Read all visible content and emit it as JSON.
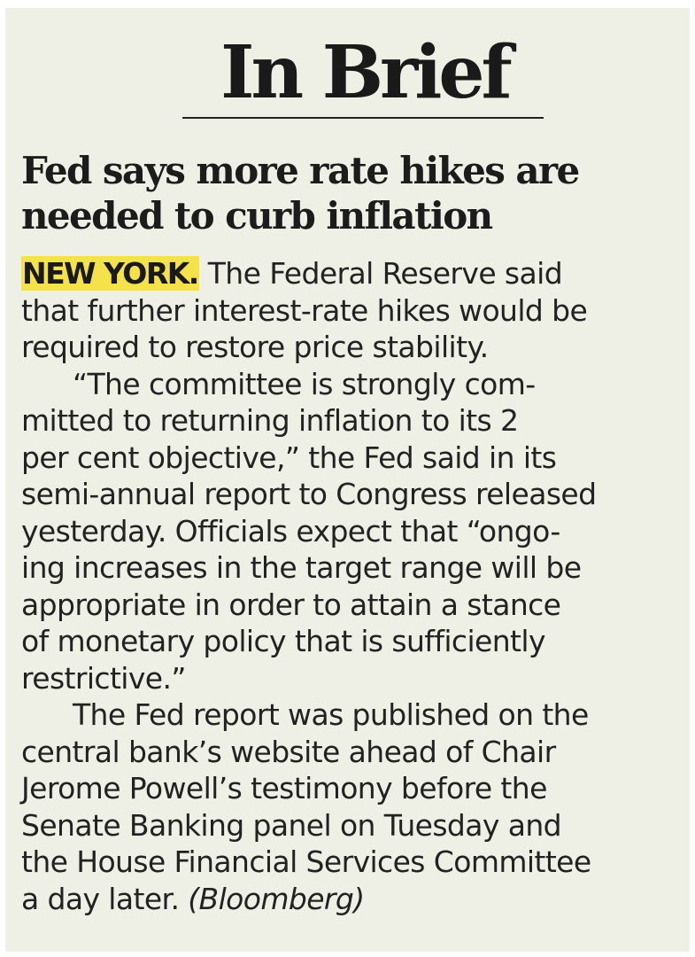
{
  "section": {
    "title": "In Brief"
  },
  "article": {
    "headline": [
      "Fed says more rate hikes are",
      "needed to curb inflation"
    ],
    "dateline": "NEW YORK.",
    "lines": [
      " The Federal Reserve said",
      "that further interest-rate hikes would be",
      "required to restore price stability.",
      "“The committee is strongly com-",
      "mitted to returning inflation to its 2",
      "per cent objective,”   the Fed said in its",
      "semi-annual report to Congress released",
      "yesterday. Officials expect that “ongo-",
      "ing increases in the target range will be",
      "appropriate in order to attain a stance",
      "of monetary policy that is sufficiently",
      "restrictive.”",
      "The Fed report was published on the",
      "central bank’s website ahead of Chair",
      "Jerome Powell’s testimony before the",
      "Senate Banking panel on Tuesday and",
      "the House Financial Services Committee",
      "a day later. "
    ],
    "source": "(Bloomberg)"
  }
}
